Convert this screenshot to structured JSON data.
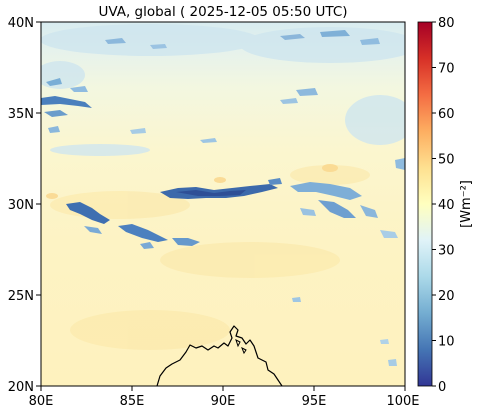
{
  "map": {
    "title": "UVA, global ( 2025-12-05 05:50 UTC)",
    "lon_ticks": [
      "80E",
      "85E",
      "90E",
      "95E",
      "100E"
    ],
    "lat_ticks": [
      "40N",
      "35N",
      "30N",
      "25N",
      "20N"
    ],
    "extent": {
      "lon": [
        80,
        100
      ],
      "lat": [
        20,
        40
      ]
    },
    "colorbar": {
      "ticks": [
        "80",
        "70",
        "60",
        "50",
        "40",
        "30",
        "20",
        "10",
        "0"
      ],
      "label": "[Wm⁻²]",
      "range": [
        0,
        80
      ],
      "colormap": "RdYlBu_r",
      "colors": [
        "#313695",
        "#4575b4",
        "#74add1",
        "#abd9e9",
        "#e0f3f8",
        "#ffffbf",
        "#fee090",
        "#fdae61",
        "#f46d43",
        "#d73027",
        "#a50026"
      ]
    },
    "field": {
      "south_value": 44,
      "north_value": 33,
      "features": [
        "high clouds over Tibetan Plateau (low UVA, ~5–20)",
        "coastline of Bay of Bengal / Bangladesh"
      ]
    }
  }
}
